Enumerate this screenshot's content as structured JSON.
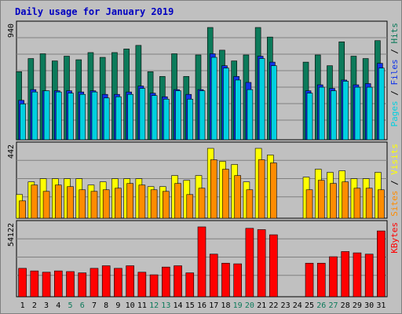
{
  "chart_data": [
    {
      "type": "bar",
      "title": "Daily usage for January 2019",
      "panel": "pages-files-hits",
      "ymax_label": "940",
      "ylim": [
        0,
        940
      ],
      "legend": [
        {
          "name": "Pages",
          "color": "#00d0e0"
        },
        {
          "name": "Files",
          "color": "#1034e8"
        },
        {
          "name": "Hits",
          "color": "#0c7a5a"
        }
      ],
      "categories": [
        "1",
        "2",
        "3",
        "4",
        "5",
        "6",
        "7",
        "8",
        "9",
        "10",
        "11",
        "12",
        "13",
        "14",
        "15",
        "16",
        "17",
        "18",
        "19",
        "20",
        "21",
        "22",
        "23",
        "24",
        "25",
        "26",
        "27",
        "28",
        "29",
        "30",
        "31"
      ],
      "weekend_days": [
        "5",
        "6",
        "12",
        "13",
        "19",
        "20",
        "26",
        "27"
      ],
      "series": [
        {
          "name": "Hits",
          "values": [
            570,
            680,
            720,
            660,
            700,
            670,
            730,
            690,
            730,
            760,
            790,
            570,
            530,
            720,
            530,
            710,
            940,
            750,
            660,
            710,
            940,
            860,
            null,
            null,
            650,
            710,
            620,
            820,
            700,
            680,
            830
          ]
        },
        {
          "name": "Files",
          "values": [
            330,
            420,
            410,
            410,
            410,
            400,
            410,
            380,
            380,
            400,
            450,
            390,
            360,
            420,
            380,
            420,
            720,
            620,
            530,
            480,
            700,
            650,
            null,
            null,
            410,
            460,
            430,
            500,
            460,
            470,
            640
          ]
        },
        {
          "name": "Pages",
          "values": [
            300,
            400,
            410,
            400,
            390,
            380,
            400,
            350,
            360,
            380,
            430,
            370,
            340,
            410,
            340,
            410,
            690,
            600,
            500,
            420,
            680,
            620,
            null,
            null,
            390,
            440,
            410,
            490,
            440,
            440,
            600
          ]
        }
      ]
    },
    {
      "type": "bar",
      "panel": "sites-visits",
      "ymax_label": "442",
      "ylim": [
        0,
        442
      ],
      "legend": [
        {
          "name": "Sites",
          "color": "#ff8c00"
        },
        {
          "name": "Visits",
          "color": "#ffff00"
        }
      ],
      "categories": [
        "1",
        "2",
        "3",
        "4",
        "5",
        "6",
        "7",
        "8",
        "9",
        "10",
        "11",
        "12",
        "13",
        "14",
        "15",
        "16",
        "17",
        "18",
        "19",
        "20",
        "21",
        "22",
        "23",
        "24",
        "25",
        "26",
        "27",
        "28",
        "29",
        "30",
        "31"
      ],
      "series": [
        {
          "name": "Visits",
          "values": [
            150,
            230,
            250,
            250,
            250,
            250,
            210,
            230,
            250,
            250,
            250,
            200,
            200,
            270,
            240,
            270,
            442,
            360,
            340,
            230,
            442,
            400,
            null,
            null,
            260,
            310,
            290,
            300,
            250,
            250,
            290
          ]
        },
        {
          "name": "Sites",
          "values": [
            110,
            210,
            170,
            210,
            200,
            180,
            170,
            180,
            190,
            220,
            210,
            180,
            170,
            220,
            150,
            190,
            370,
            310,
            270,
            180,
            370,
            350,
            null,
            null,
            180,
            240,
            220,
            230,
            190,
            190,
            180
          ]
        }
      ]
    },
    {
      "type": "bar",
      "panel": "kbytes",
      "ymax_label": "54122",
      "ylim": [
        0,
        54122
      ],
      "legend": [
        {
          "name": "KBytes",
          "color": "#ff0000"
        }
      ],
      "categories": [
        "1",
        "2",
        "3",
        "4",
        "5",
        "6",
        "7",
        "8",
        "9",
        "10",
        "11",
        "12",
        "13",
        "14",
        "15",
        "16",
        "17",
        "18",
        "19",
        "20",
        "21",
        "22",
        "23",
        "24",
        "25",
        "26",
        "27",
        "28",
        "29",
        "30",
        "31"
      ],
      "series": [
        {
          "name": "KBytes",
          "values": [
            22000,
            20000,
            19000,
            20000,
            19500,
            18500,
            22000,
            24000,
            22000,
            24000,
            19000,
            17000,
            23000,
            24000,
            18500,
            54122,
            33000,
            26000,
            25500,
            53000,
            52000,
            48000,
            null,
            null,
            26000,
            26000,
            31000,
            35000,
            34000,
            33000,
            51000
          ]
        }
      ]
    }
  ]
}
